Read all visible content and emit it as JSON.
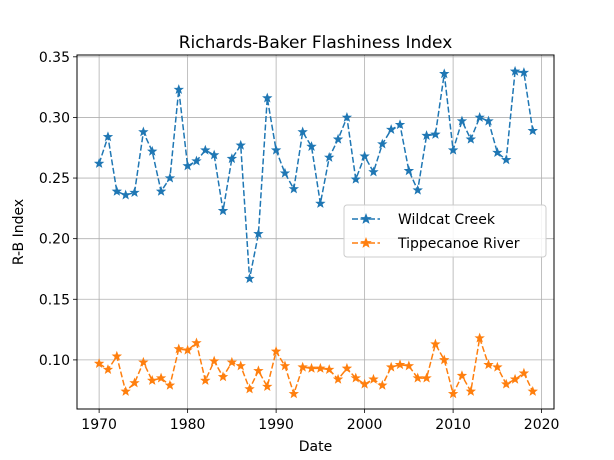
{
  "chart_data": {
    "type": "line",
    "title": "Richards-Baker Flashiness Index",
    "xlabel": "Date",
    "ylabel": "R-B Index",
    "xlim": [
      1967.5,
      2021.4
    ],
    "ylim": [
      0.0595,
      0.3515
    ],
    "xticks": [
      1970,
      1980,
      1990,
      2000,
      2010,
      2020
    ],
    "yticks": [
      0.1,
      0.15,
      0.2,
      0.25,
      0.3,
      0.35
    ],
    "ytick_labels": [
      "0.10",
      "0.15",
      "0.20",
      "0.25",
      "0.30",
      "0.35"
    ],
    "grid": true,
    "legend_position": "center-right",
    "x": [
      1970,
      1971,
      1972,
      1973,
      1974,
      1975,
      1976,
      1977,
      1978,
      1979,
      1980,
      1981,
      1982,
      1983,
      1984,
      1985,
      1986,
      1987,
      1988,
      1989,
      1990,
      1991,
      1992,
      1993,
      1994,
      1995,
      1996,
      1997,
      1998,
      1999,
      2000,
      2001,
      2002,
      2003,
      2004,
      2005,
      2006,
      2007,
      2008,
      2009,
      2010,
      2011,
      2012,
      2013,
      2014,
      2015,
      2016,
      2017,
      2018,
      2019
    ],
    "series": [
      {
        "name": "Wildcat Creek",
        "color": "#1f77b4",
        "values": [
          0.262,
          0.284,
          0.239,
          0.236,
          0.238,
          0.288,
          0.272,
          0.239,
          0.25,
          0.323,
          0.26,
          0.264,
          0.273,
          0.269,
          0.223,
          0.266,
          0.277,
          0.167,
          0.204,
          0.316,
          0.273,
          0.254,
          0.241,
          0.288,
          0.276,
          0.229,
          0.267,
          0.282,
          0.3,
          0.249,
          0.268,
          0.255,
          0.278,
          0.29,
          0.294,
          0.256,
          0.24,
          0.285,
          0.286,
          0.336,
          0.273,
          0.297,
          0.282,
          0.3,
          0.297,
          0.271,
          0.265,
          0.338,
          0.337,
          0.289
        ]
      },
      {
        "name": "Tippecanoe River",
        "color": "#ff7f0e",
        "values": [
          0.097,
          0.092,
          0.103,
          0.074,
          0.081,
          0.098,
          0.083,
          0.085,
          0.079,
          0.109,
          0.108,
          0.114,
          0.083,
          0.099,
          0.086,
          0.098,
          0.095,
          0.076,
          0.091,
          0.078,
          0.107,
          0.095,
          0.072,
          0.094,
          0.093,
          0.093,
          0.092,
          0.084,
          0.093,
          0.085,
          0.08,
          0.084,
          0.079,
          0.094,
          0.096,
          0.095,
          0.085,
          0.085,
          0.113,
          0.1,
          0.072,
          0.087,
          0.074,
          0.118,
          0.096,
          0.094,
          0.08,
          0.084,
          0.089,
          0.074
        ]
      }
    ]
  }
}
